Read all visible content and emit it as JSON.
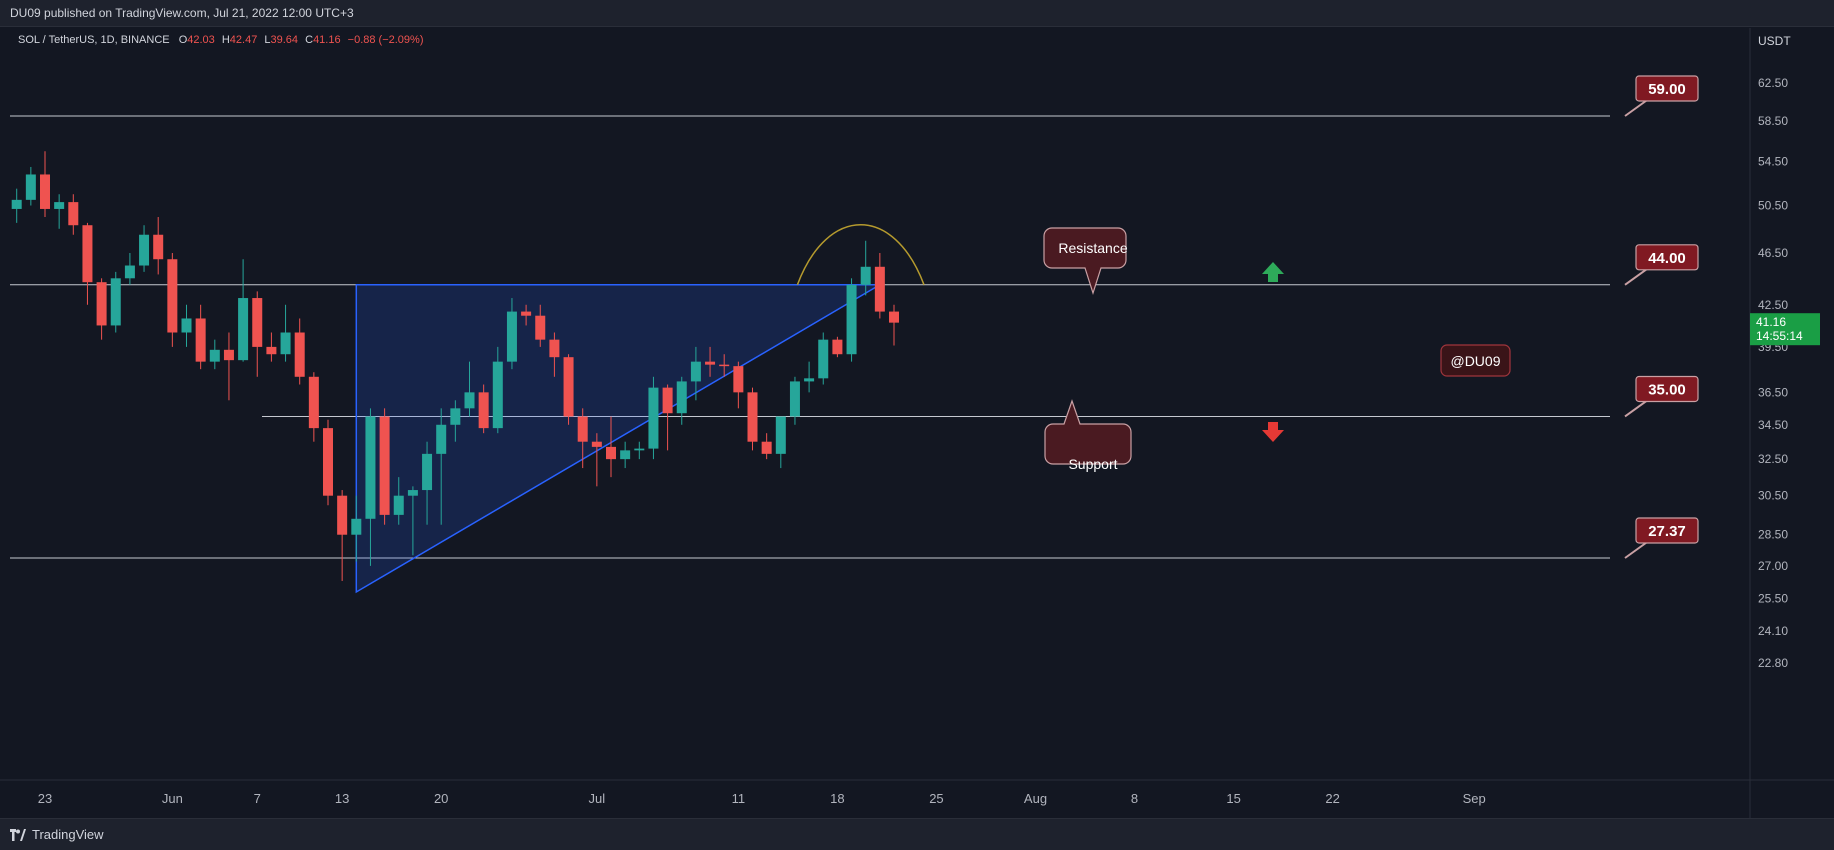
{
  "header": {
    "published": "DU09 published on TradingView.com, Jul 21, 2022 12:00 UTC+3"
  },
  "legend": {
    "symbol": "SOL / TetherUS, 1D, BINANCE",
    "o_label": "O",
    "o_value": "42.03",
    "h_label": "H",
    "h_value": "42.47",
    "l_label": "L",
    "l_value": "39.64",
    "c_label": "C",
    "c_value": "41.16",
    "change": "−0.88 (−2.09%)"
  },
  "price_scale": {
    "currency": "USDT",
    "last_price": "41.16",
    "countdown": "14:55:14"
  },
  "footer": {
    "brand": "TradingView"
  },
  "annotations": {
    "resistance": "Resistance",
    "support": "Support",
    "watermark": "@DU09",
    "price_tags": [
      "59.00",
      "44.00",
      "35.00",
      "27.37"
    ]
  },
  "colors": {
    "background": "#131722",
    "bull": "#26a69a",
    "bear": "#ef5350",
    "triangle_stroke": "#2962ff",
    "tag_fill": "#801922",
    "arc": "#b59a2e"
  },
  "chart_data": {
    "type": "candlestick",
    "y_scale": "log",
    "ylim": [
      22.8,
      68
    ],
    "yticks": [
      "62.50",
      "58.50",
      "54.50",
      "50.50",
      "46.50",
      "42.50",
      "39.50",
      "36.50",
      "34.50",
      "32.50",
      "30.50",
      "28.50",
      "27.00",
      "25.50",
      "24.10",
      "22.80"
    ],
    "xticks": [
      "23",
      "Jun",
      "7",
      "13",
      "20",
      "Jul",
      "11",
      "18",
      "25",
      "Aug",
      "8",
      "15",
      "22",
      "Sep"
    ],
    "horizontal_levels": [
      59.0,
      44.0,
      35.0,
      27.37
    ],
    "triangle": {
      "top": {
        "from": "2022-06-14",
        "to": "2022-07-21",
        "value": 44.0
      },
      "bottom": {
        "from": "2022-06-14",
        "to": "2022-07-21",
        "value_start": 25.8,
        "value_end": 44.0
      }
    },
    "candles": [
      {
        "d": "2022-05-21",
        "o": 50.2,
        "h": 52.0,
        "l": 49.0,
        "c": 51.0
      },
      {
        "d": "2022-05-22",
        "o": 51.0,
        "h": 54.0,
        "l": 50.5,
        "c": 53.3
      },
      {
        "d": "2022-05-23",
        "o": 53.3,
        "h": 55.5,
        "l": 49.5,
        "c": 50.2
      },
      {
        "d": "2022-05-24",
        "o": 50.2,
        "h": 51.5,
        "l": 48.5,
        "c": 50.8
      },
      {
        "d": "2022-05-25",
        "o": 50.8,
        "h": 51.5,
        "l": 48.0,
        "c": 48.8
      },
      {
        "d": "2022-05-26",
        "o": 48.8,
        "h": 49.0,
        "l": 42.5,
        "c": 44.2
      },
      {
        "d": "2022-05-27",
        "o": 44.2,
        "h": 44.5,
        "l": 40.0,
        "c": 41.0
      },
      {
        "d": "2022-05-28",
        "o": 41.0,
        "h": 45.0,
        "l": 40.5,
        "c": 44.5
      },
      {
        "d": "2022-05-29",
        "o": 44.5,
        "h": 46.5,
        "l": 44.0,
        "c": 45.5
      },
      {
        "d": "2022-05-30",
        "o": 45.5,
        "h": 48.8,
        "l": 45.0,
        "c": 48.0
      },
      {
        "d": "2022-05-31",
        "o": 48.0,
        "h": 49.5,
        "l": 44.8,
        "c": 46.0
      },
      {
        "d": "2022-06-01",
        "o": 46.0,
        "h": 46.5,
        "l": 39.5,
        "c": 40.5
      },
      {
        "d": "2022-06-02",
        "o": 40.5,
        "h": 42.5,
        "l": 39.5,
        "c": 41.5
      },
      {
        "d": "2022-06-03",
        "o": 41.5,
        "h": 42.5,
        "l": 38.0,
        "c": 38.5
      },
      {
        "d": "2022-06-04",
        "o": 38.5,
        "h": 40.0,
        "l": 38.0,
        "c": 39.3
      },
      {
        "d": "2022-06-05",
        "o": 39.3,
        "h": 40.5,
        "l": 36.0,
        "c": 38.6
      },
      {
        "d": "2022-06-06",
        "o": 38.6,
        "h": 46.0,
        "l": 38.5,
        "c": 43.0
      },
      {
        "d": "2022-06-07",
        "o": 43.0,
        "h": 43.5,
        "l": 37.5,
        "c": 39.5
      },
      {
        "d": "2022-06-08",
        "o": 39.5,
        "h": 40.5,
        "l": 38.5,
        "c": 39.0
      },
      {
        "d": "2022-06-09",
        "o": 39.0,
        "h": 42.5,
        "l": 38.5,
        "c": 40.5
      },
      {
        "d": "2022-06-10",
        "o": 40.5,
        "h": 41.5,
        "l": 37.0,
        "c": 37.5
      },
      {
        "d": "2022-06-11",
        "o": 37.5,
        "h": 37.8,
        "l": 33.5,
        "c": 34.3
      },
      {
        "d": "2022-06-12",
        "o": 34.3,
        "h": 34.8,
        "l": 30.0,
        "c": 30.5
      },
      {
        "d": "2022-06-13",
        "o": 30.5,
        "h": 30.8,
        "l": 26.3,
        "c": 28.5
      },
      {
        "d": "2022-06-14",
        "o": 28.5,
        "h": 30.5,
        "l": 27.2,
        "c": 29.3
      },
      {
        "d": "2022-06-15",
        "o": 29.3,
        "h": 35.5,
        "l": 27.0,
        "c": 35.0
      },
      {
        "d": "2022-06-16",
        "o": 35.0,
        "h": 35.5,
        "l": 29.0,
        "c": 29.5
      },
      {
        "d": "2022-06-17",
        "o": 29.5,
        "h": 31.5,
        "l": 29.0,
        "c": 30.5
      },
      {
        "d": "2022-06-18",
        "o": 30.5,
        "h": 31.0,
        "l": 27.5,
        "c": 30.8
      },
      {
        "d": "2022-06-19",
        "o": 30.8,
        "h": 33.5,
        "l": 29.0,
        "c": 32.8
      },
      {
        "d": "2022-06-20",
        "o": 32.8,
        "h": 35.5,
        "l": 29.0,
        "c": 34.5
      },
      {
        "d": "2022-06-21",
        "o": 34.5,
        "h": 36.0,
        "l": 33.5,
        "c": 35.5
      },
      {
        "d": "2022-06-22",
        "o": 35.5,
        "h": 38.5,
        "l": 35.0,
        "c": 36.5
      },
      {
        "d": "2022-06-23",
        "o": 36.5,
        "h": 37.0,
        "l": 34.0,
        "c": 34.3
      },
      {
        "d": "2022-06-24",
        "o": 34.3,
        "h": 39.5,
        "l": 34.0,
        "c": 38.5
      },
      {
        "d": "2022-06-25",
        "o": 38.5,
        "h": 43.0,
        "l": 38.0,
        "c": 42.0
      },
      {
        "d": "2022-06-26",
        "o": 42.0,
        "h": 42.5,
        "l": 41.0,
        "c": 41.7
      },
      {
        "d": "2022-06-27",
        "o": 41.7,
        "h": 42.5,
        "l": 39.5,
        "c": 40.0
      },
      {
        "d": "2022-06-28",
        "o": 40.0,
        "h": 40.5,
        "l": 37.5,
        "c": 38.8
      },
      {
        "d": "2022-06-29",
        "o": 38.8,
        "h": 39.0,
        "l": 34.5,
        "c": 35.0
      },
      {
        "d": "2022-06-30",
        "o": 35.0,
        "h": 35.5,
        "l": 32.0,
        "c": 33.5
      },
      {
        "d": "2022-07-01",
        "o": 33.5,
        "h": 34.0,
        "l": 31.0,
        "c": 33.2
      },
      {
        "d": "2022-07-02",
        "o": 33.2,
        "h": 35.0,
        "l": 31.5,
        "c": 32.5
      },
      {
        "d": "2022-07-03",
        "o": 32.5,
        "h": 33.5,
        "l": 32.0,
        "c": 33.0
      },
      {
        "d": "2022-07-04",
        "o": 33.0,
        "h": 33.5,
        "l": 32.5,
        "c": 33.1
      },
      {
        "d": "2022-07-05",
        "o": 33.1,
        "h": 37.5,
        "l": 32.5,
        "c": 36.8
      },
      {
        "d": "2022-07-06",
        "o": 36.8,
        "h": 37.0,
        "l": 33.0,
        "c": 35.2
      },
      {
        "d": "2022-07-07",
        "o": 35.2,
        "h": 37.5,
        "l": 34.5,
        "c": 37.2
      },
      {
        "d": "2022-07-08",
        "o": 37.2,
        "h": 39.5,
        "l": 36.0,
        "c": 38.5
      },
      {
        "d": "2022-07-09",
        "o": 38.5,
        "h": 39.5,
        "l": 37.5,
        "c": 38.3
      },
      {
        "d": "2022-07-10",
        "o": 38.3,
        "h": 39.0,
        "l": 37.5,
        "c": 38.2
      },
      {
        "d": "2022-07-11",
        "o": 38.2,
        "h": 38.5,
        "l": 35.5,
        "c": 36.5
      },
      {
        "d": "2022-07-12",
        "o": 36.5,
        "h": 36.8,
        "l": 33.0,
        "c": 33.5
      },
      {
        "d": "2022-07-13",
        "o": 33.5,
        "h": 34.0,
        "l": 32.5,
        "c": 32.8
      },
      {
        "d": "2022-07-14",
        "o": 32.8,
        "h": 35.0,
        "l": 32.0,
        "c": 35.0
      },
      {
        "d": "2022-07-15",
        "o": 35.0,
        "h": 37.5,
        "l": 34.5,
        "c": 37.2
      },
      {
        "d": "2022-07-16",
        "o": 37.2,
        "h": 38.5,
        "l": 36.5,
        "c": 37.4
      },
      {
        "d": "2022-07-17",
        "o": 37.4,
        "h": 40.5,
        "l": 37.0,
        "c": 40.0
      },
      {
        "d": "2022-07-18",
        "o": 40.0,
        "h": 40.2,
        "l": 38.8,
        "c": 39.0
      },
      {
        "d": "2022-07-19",
        "o": 39.0,
        "h": 44.5,
        "l": 38.5,
        "c": 44.0
      },
      {
        "d": "2022-07-20",
        "o": 44.0,
        "h": 47.5,
        "l": 43.2,
        "c": 45.4
      },
      {
        "d": "2022-07-21",
        "o": 45.4,
        "h": 46.5,
        "l": 41.5,
        "c": 42.0
      },
      {
        "d": "2022-07-22",
        "o": 42.0,
        "h": 42.5,
        "l": 39.6,
        "c": 41.2
      }
    ]
  }
}
